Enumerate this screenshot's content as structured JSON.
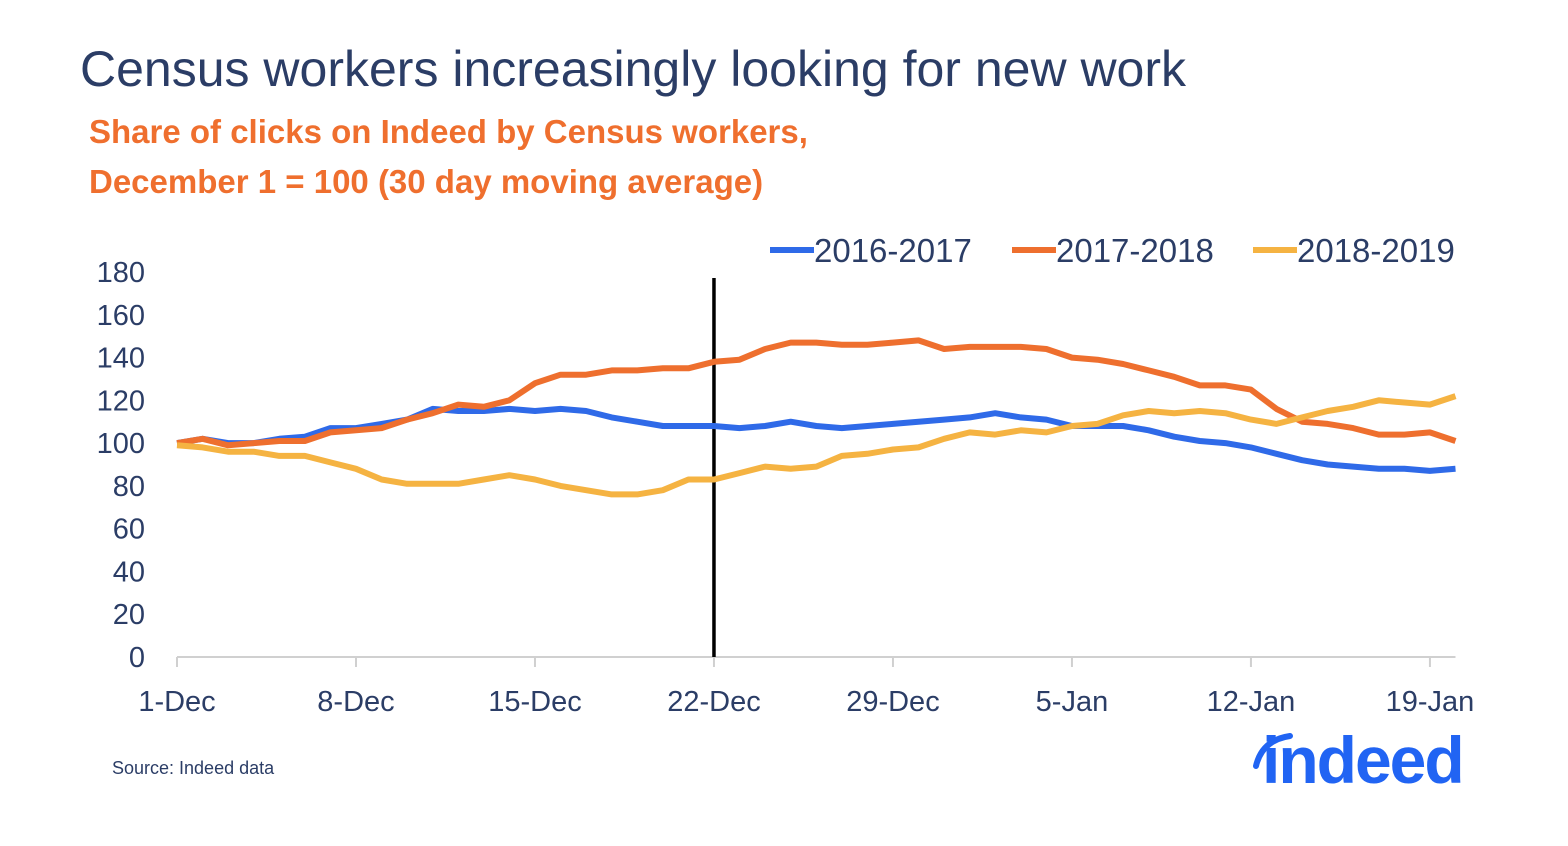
{
  "title": "Census workers increasingly looking for new work",
  "subtitle_line1": "Share of clicks on Indeed by Census workers,",
  "subtitle_line2": "December 1 = 100 (30 day moving average)",
  "source": "Source: Indeed data",
  "logo": "indeed",
  "colors": {
    "2016-2017": "#2f6ae8",
    "2017-2018": "#ee6f2e",
    "2018-2019": "#f5b342",
    "marker_line": "#000000"
  },
  "chart_data": {
    "type": "line",
    "title": "",
    "xlabel": "",
    "ylabel": "",
    "ylim": [
      0,
      180
    ],
    "yticks": [
      "0",
      "20",
      "40",
      "60",
      "80",
      "100",
      "120",
      "140",
      "160",
      "180"
    ],
    "xticks": [
      "1-Dec",
      "8-Dec",
      "15-Dec",
      "22-Dec",
      "29-Dec",
      "5-Jan",
      "12-Jan",
      "19-Jan"
    ],
    "x_start": "1-Dec",
    "x_step": "1 day",
    "grid": false,
    "legend": "top-right",
    "vertical_marker": "22-Dec",
    "series": [
      {
        "name": "2016-2017",
        "values": [
          100,
          102,
          100,
          100,
          102,
          103,
          107,
          107,
          109,
          111,
          116,
          115,
          115,
          116,
          115,
          116,
          115,
          112,
          110,
          108,
          108,
          108,
          107,
          108,
          110,
          108,
          107,
          108,
          109,
          110,
          111,
          112,
          114,
          112,
          111,
          108,
          108,
          108,
          106,
          103,
          101,
          100,
          98,
          95,
          92,
          90,
          89,
          88,
          88,
          87,
          88
        ]
      },
      {
        "name": "2017-2018",
        "values": [
          100,
          102,
          99,
          100,
          101,
          101,
          105,
          106,
          107,
          111,
          114,
          118,
          117,
          120,
          128,
          132,
          132,
          134,
          134,
          135,
          135,
          138,
          139,
          144,
          147,
          147,
          146,
          146,
          147,
          148,
          144,
          145,
          145,
          145,
          144,
          140,
          139,
          137,
          134,
          131,
          127,
          127,
          125,
          116,
          110,
          109,
          107,
          104,
          104,
          105,
          101
        ]
      },
      {
        "name": "2018-2019",
        "values": [
          99,
          98,
          96,
          96,
          94,
          94,
          91,
          88,
          83,
          81,
          81,
          81,
          83,
          85,
          83,
          80,
          78,
          76,
          76,
          78,
          83,
          83,
          86,
          89,
          88,
          89,
          94,
          95,
          97,
          98,
          102,
          105,
          104,
          106,
          105,
          108,
          109,
          113,
          115,
          114,
          115,
          114,
          111,
          109,
          112,
          115,
          117,
          120,
          119,
          118,
          122
        ]
      }
    ]
  }
}
